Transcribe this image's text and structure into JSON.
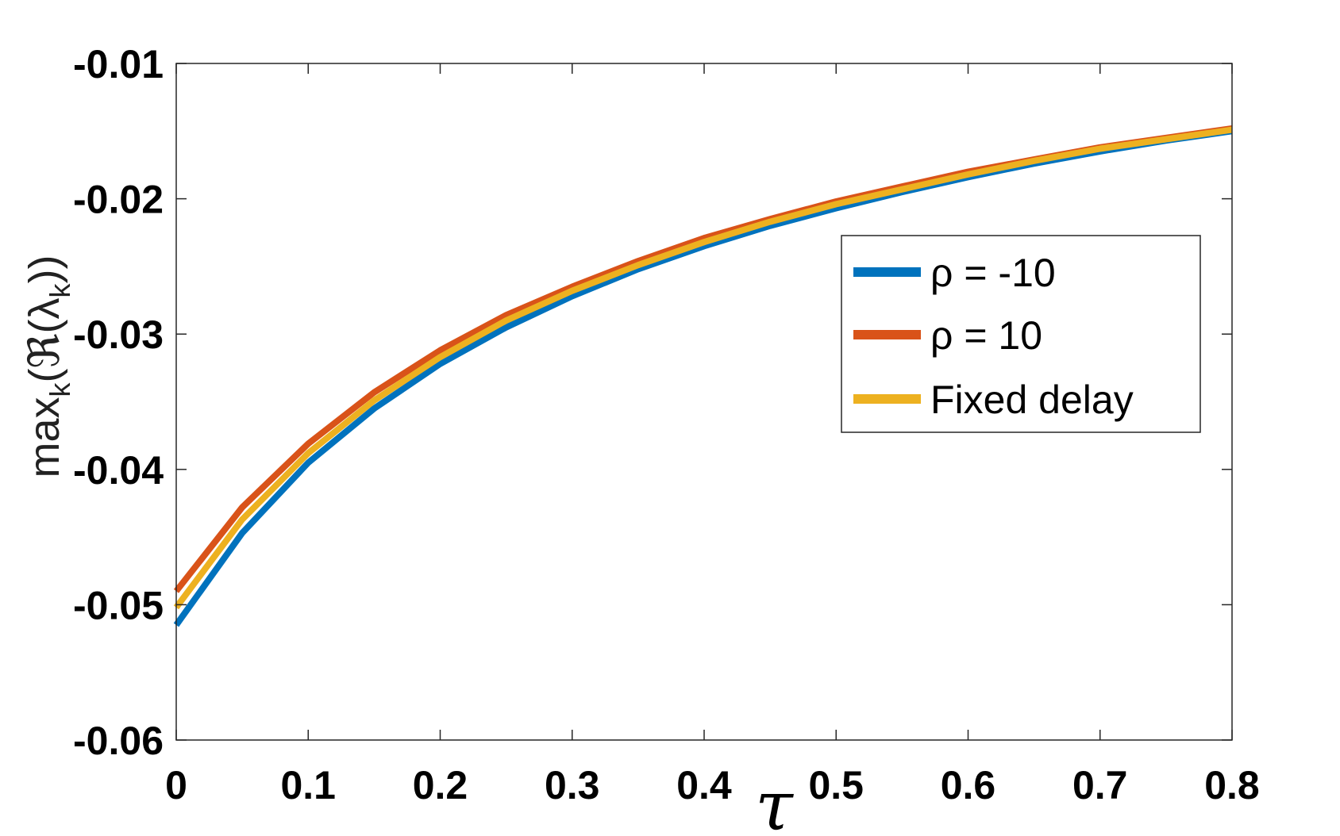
{
  "chart_data": {
    "type": "line",
    "title": "",
    "xlabel": "τ",
    "ylabel": "max_k(ℜ(λ_k))",
    "ylabel_parts": {
      "base": "max",
      "sub1": "k",
      "mid": "(ℜ(λ",
      "sub2": "k",
      "end": "))"
    },
    "xlim": [
      0,
      0.8
    ],
    "ylim": [
      -0.06,
      -0.01
    ],
    "xticks": [
      "0",
      "0.1",
      "0.2",
      "0.3",
      "0.4",
      "0.5",
      "0.6",
      "0.7",
      "0.8"
    ],
    "yticks": [
      "-0.01",
      "-0.02",
      "-0.03",
      "-0.04",
      "-0.05",
      "-0.06"
    ],
    "grid": false,
    "legend_position": "upper-right",
    "x": [
      0,
      0.05,
      0.1,
      0.15,
      0.2,
      0.25,
      0.3,
      0.35,
      0.4,
      0.45,
      0.5,
      0.55,
      0.6,
      0.65,
      0.7,
      0.75,
      0.8
    ],
    "series": [
      {
        "name": "ρ = -10",
        "color": "#0072BD",
        "values": [
          -0.0515,
          -0.0447,
          -0.0395,
          -0.0355,
          -0.0322,
          -0.0295,
          -0.0272,
          -0.0252,
          -0.0235,
          -0.022,
          -0.0207,
          -0.0195,
          -0.0184,
          -0.0174,
          -0.0165,
          -0.0157,
          -0.015
        ]
      },
      {
        "name": "ρ = 10",
        "color": "#D95319",
        "values": [
          -0.049,
          -0.0428,
          -0.0381,
          -0.0343,
          -0.0312,
          -0.0286,
          -0.0265,
          -0.0246,
          -0.0229,
          -0.0215,
          -0.0202,
          -0.0191,
          -0.018,
          -0.0171,
          -0.0162,
          -0.0155,
          -0.0148
        ]
      },
      {
        "name": "Fixed delay",
        "color": "#EDB120",
        "values": [
          -0.0502,
          -0.0437,
          -0.0388,
          -0.0349,
          -0.0317,
          -0.029,
          -0.0268,
          -0.0249,
          -0.0232,
          -0.0217,
          -0.0204,
          -0.0193,
          -0.0182,
          -0.0172,
          -0.0163,
          -0.0156,
          -0.0149
        ]
      }
    ]
  }
}
